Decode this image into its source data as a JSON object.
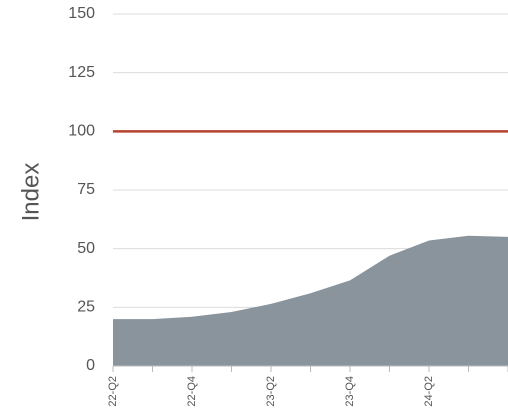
{
  "chart_data": {
    "type": "area",
    "y_label": "Index",
    "categories": [
      "22-Q2",
      null,
      "22-Q4",
      null,
      "23-Q2",
      null,
      "23-Q4",
      null,
      "24-Q2",
      null,
      null
    ],
    "values": [
      20,
      20,
      21,
      23,
      26.5,
      31,
      36.5,
      47,
      53.5,
      55.5,
      55
    ],
    "color": "#8a949c",
    "reference_line": {
      "value": 100,
      "color": "#b5432f"
    },
    "ylim": [
      0,
      150
    ],
    "yticks": [
      0,
      25,
      50,
      75,
      100,
      125,
      150
    ],
    "grid": true
  }
}
